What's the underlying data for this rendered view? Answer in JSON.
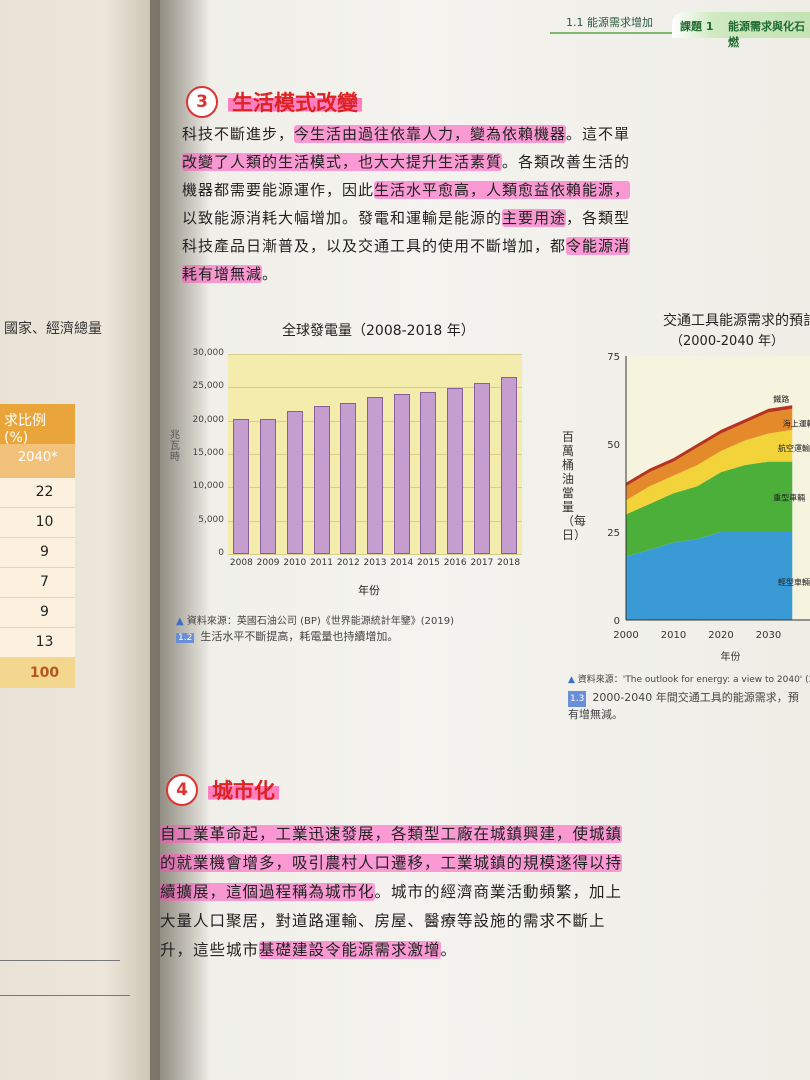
{
  "header": {
    "section": "1.1 能源需求增加",
    "topic": "課題 1",
    "topic_title": "能源需求與化石燃"
  },
  "left_page": {
    "text": "國家、經濟總量",
    "table_head": "求比例 (%)",
    "table_col": "2040*",
    "rows": [
      "22",
      "10",
      "9",
      "7",
      "9",
      "13"
    ],
    "total": "100"
  },
  "section3": {
    "number": "3",
    "title": "生活模式改變",
    "lines": [
      "科技不斷進步，今生活由過往依靠人力，變為依賴機器。這不單",
      "改變了人類的生活模式，也大大提升生活素質。各類改善生活的",
      "機器都需要能源運作，因此生活水平愈高，人類愈益依賴能源，",
      "以致能源消耗大幅增加。發電和運輸是能源的主要用途，各類型",
      "科技產品日漸普及，以及交通工具的使用不斷增加，都令能源消",
      "耗有增無減。"
    ]
  },
  "section4": {
    "number": "4",
    "title": "城市化",
    "lines": [
      "自工業革命起，工業迅速發展，各類型工廠在城鎮興建，使城鎮",
      "的就業機會增多，吸引農村人口遷移，工業城鎮的規模遂得以持",
      "續擴展，這個過程稱為城市化。城市的經濟商業活動頻繁，加上",
      "大量人口聚居，對道路運輸、房屋、醫療等設施的需求不斷上",
      "升，這些城市基礎建設令能源需求激增。"
    ]
  },
  "figure1": {
    "source": "資料來源：英國石油公司 (BP)《世界能源統計年鑒》(2019)",
    "fig_no": "1.2",
    "caption": "生活水平不斷提高，耗電量也持續增加。"
  },
  "figure2": {
    "source": "資料來源：'The outlook for energy: a view to 2040' (2",
    "fig_no": "1.3",
    "caption_line1": "2000-2040 年間交通工具的能源需求，預",
    "caption_line2": "有增無減。"
  },
  "chart_data": [
    {
      "type": "bar",
      "title": "全球發電量（2008-2018 年）",
      "xlabel": "年份",
      "ylabel": "兆瓦時",
      "categories": [
        "2008",
        "2009",
        "2010",
        "2011",
        "2012",
        "2013",
        "2014",
        "2015",
        "2016",
        "2017",
        "2018"
      ],
      "values": [
        20300,
        20200,
        21500,
        22200,
        22700,
        23500,
        24000,
        24300,
        24900,
        25600,
        26600
      ],
      "yticks": [
        "0",
        "5,000",
        "10,000",
        "15,000",
        "20,000",
        "25,000",
        "30,000"
      ],
      "ylim": [
        0,
        30000
      ],
      "grid": true
    },
    {
      "type": "area",
      "title": "交通工具能源需求的預計",
      "subtitle": "（2000-2040 年）",
      "xlabel": "年份",
      "ylabel": "百萬桶油當量（每日）",
      "xticks": [
        "2000",
        "2010",
        "2020",
        "2030",
        "2"
      ],
      "yticks": [
        "0",
        "25",
        "50",
        "75"
      ],
      "ylim": [
        0,
        75
      ],
      "x": [
        2000,
        2005,
        2010,
        2015,
        2020,
        2025,
        2030,
        2035
      ],
      "series": [
        {
          "name": "輕型車輛",
          "color": "#3a9ad6",
          "values": [
            18,
            20,
            22,
            23,
            25,
            25,
            25,
            25
          ]
        },
        {
          "name": "重型車輛",
          "color": "#4caf3a",
          "values": [
            12,
            13,
            14,
            15,
            17,
            19,
            20,
            20
          ]
        },
        {
          "name": "航空運輸",
          "color": "#f2d33a",
          "values": [
            4,
            5,
            5,
            6,
            6,
            7,
            8,
            9
          ]
        },
        {
          "name": "海上運輸",
          "color": "#e58a2a",
          "values": [
            4,
            4,
            4,
            5,
            5,
            5,
            6,
            6
          ]
        },
        {
          "name": "鐵路",
          "color": "#b5331f",
          "values": [
            1,
            1,
            1,
            1,
            1,
            1,
            1,
            1
          ]
        }
      ]
    }
  ]
}
